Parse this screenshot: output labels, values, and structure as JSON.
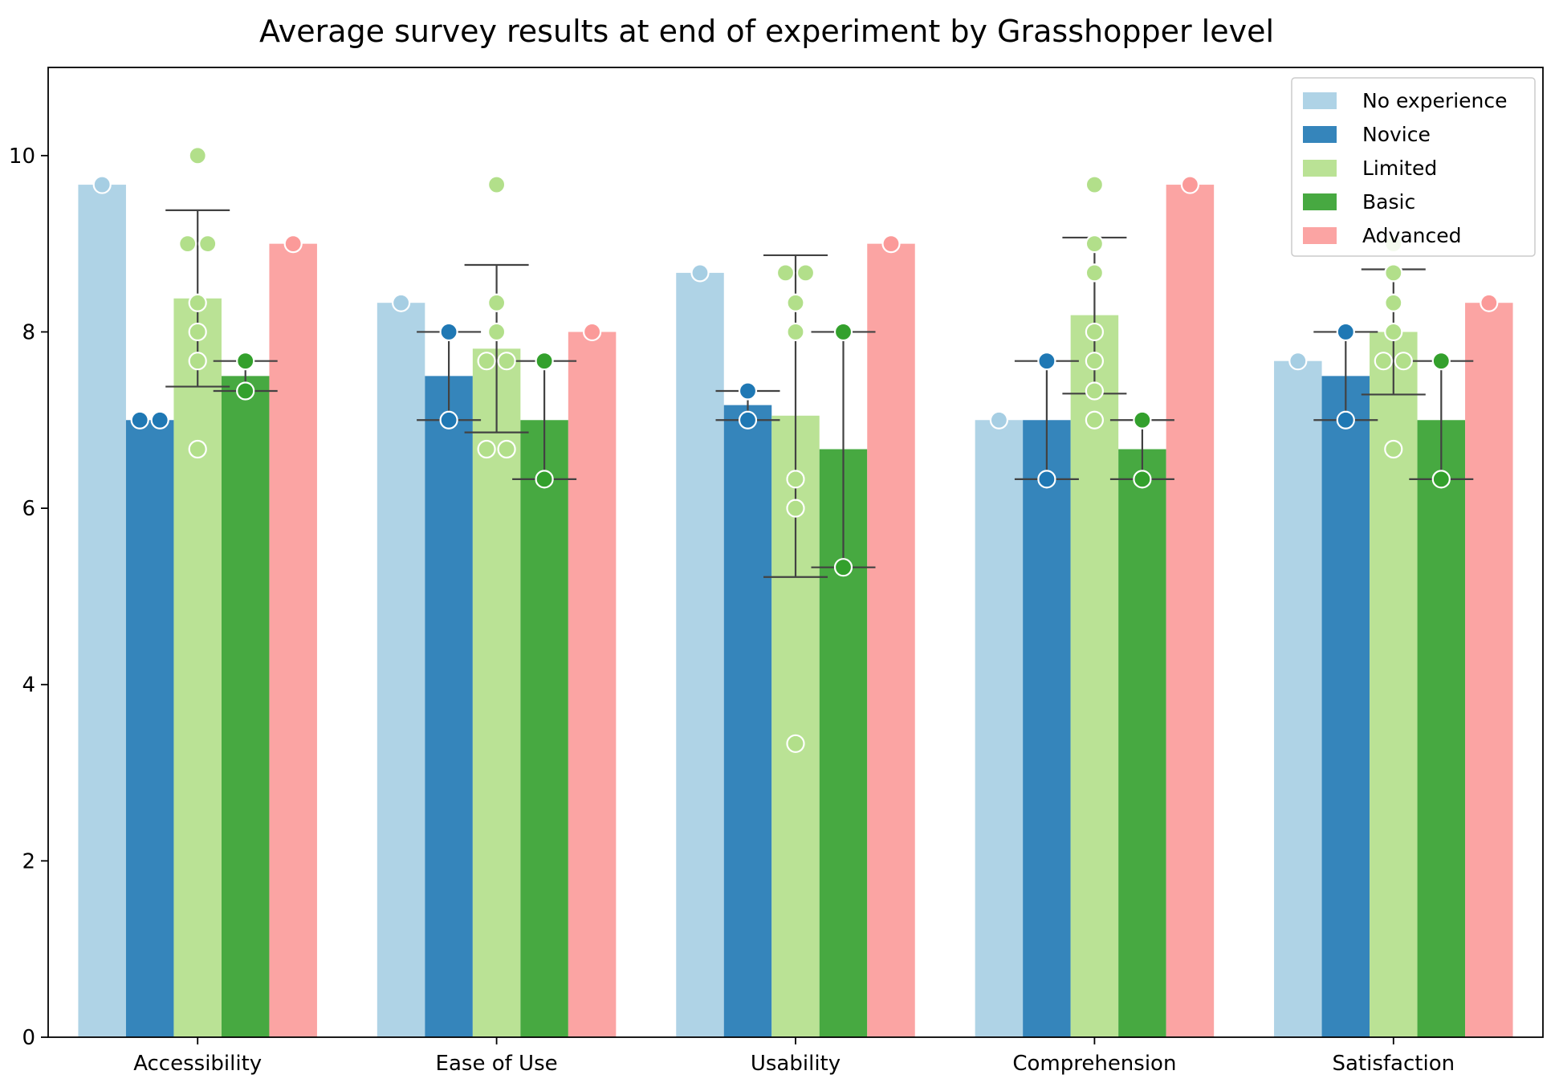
{
  "chart_data": {
    "type": "bar",
    "title": "Average survey results at end of experiment by Grasshopper level",
    "xlabel": "",
    "ylabel": "",
    "ylim": [
      0,
      11
    ],
    "yticks": [
      "0",
      "2",
      "4",
      "6",
      "8",
      "10"
    ],
    "categories": [
      "Accessibility",
      "Ease of Use",
      "Usability",
      "Comprehension",
      "Satisfaction"
    ],
    "legend_position": "top-right",
    "grid": false,
    "series": [
      {
        "name": "No experience",
        "color": "#a6cee3",
        "values": [
          9.67,
          8.33,
          8.67,
          7.0,
          7.67
        ],
        "error": [
          null,
          null,
          null,
          null,
          null
        ],
        "points": [
          [
            9.67
          ],
          [
            8.33
          ],
          [
            8.67
          ],
          [
            7.0
          ],
          [
            7.67
          ]
        ]
      },
      {
        "name": "Novice",
        "color": "#1f78b4",
        "values": [
          7.0,
          7.5,
          7.17,
          7.0,
          7.5
        ],
        "error": [
          null,
          [
            7.0,
            8.0
          ],
          [
            7.0,
            7.33
          ],
          [
            6.33,
            7.67
          ],
          [
            7.0,
            8.0
          ]
        ],
        "points": [
          [
            7.0,
            7.0
          ],
          [
            8.0,
            7.0
          ],
          [
            7.33,
            7.0
          ],
          [
            7.67,
            6.33
          ],
          [
            8.0,
            7.0
          ]
        ]
      },
      {
        "name": "Limited",
        "color": "#b2df8a",
        "values": [
          8.38,
          7.81,
          7.05,
          8.19,
          8.0
        ],
        "error": [
          [
            7.38,
            9.38
          ],
          [
            6.86,
            8.76
          ],
          [
            5.22,
            8.87
          ],
          [
            7.3,
            9.07
          ],
          [
            7.29,
            8.71
          ]
        ],
        "points": [
          [
            10.0,
            9.0,
            9.0,
            8.33,
            8.0,
            7.67,
            6.67
          ],
          [
            9.67,
            8.33,
            8.0,
            7.67,
            7.67,
            6.67,
            6.67
          ],
          [
            8.67,
            8.67,
            8.33,
            8.0,
            6.33,
            6.0,
            3.33
          ],
          [
            9.67,
            9.0,
            8.67,
            8.0,
            7.67,
            7.33,
            7.0
          ],
          [
            9.0,
            8.67,
            8.33,
            8.0,
            7.67,
            7.67,
            6.67
          ]
        ]
      },
      {
        "name": "Basic",
        "color": "#33a02c",
        "values": [
          7.5,
          7.0,
          6.67,
          6.67,
          7.0
        ],
        "error": [
          [
            7.33,
            7.67
          ],
          [
            6.33,
            7.67
          ],
          [
            5.33,
            8.0
          ],
          [
            6.33,
            7.0
          ],
          [
            6.33,
            7.67
          ]
        ],
        "points": [
          [
            7.67,
            7.33
          ],
          [
            7.67,
            6.33
          ],
          [
            8.0,
            5.33
          ],
          [
            7.0,
            6.33
          ],
          [
            7.67,
            6.33
          ]
        ]
      },
      {
        "name": "Advanced",
        "color": "#fb9a99",
        "values": [
          9.0,
          8.0,
          9.0,
          9.67,
          8.33
        ],
        "error": [
          null,
          null,
          null,
          null,
          null
        ],
        "points": [
          [
            9.0
          ],
          [
            8.0
          ],
          [
            9.0
          ],
          [
            9.67
          ],
          [
            8.33
          ]
        ]
      }
    ]
  }
}
